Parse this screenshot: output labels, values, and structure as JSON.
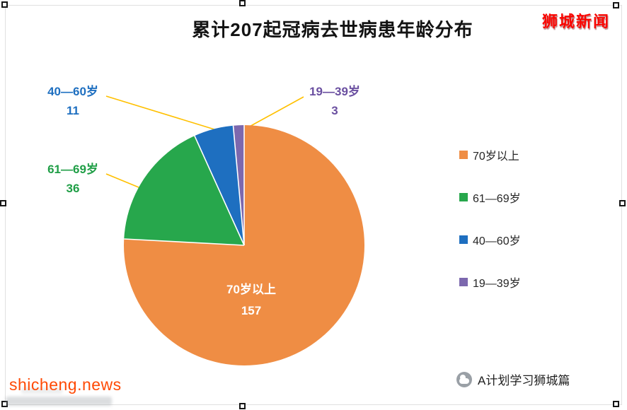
{
  "branding": {
    "logo_text": "狮城新闻"
  },
  "chart_data": {
    "type": "pie",
    "title": "累计207起冠病去世病患年龄分布",
    "total": 207,
    "slices": [
      {
        "label": "70岁以上",
        "value": 157,
        "color": "#EF8D44",
        "label_color": "#FFFFFF"
      },
      {
        "label": "61—69岁",
        "value": 36,
        "color": "#27A74C",
        "label_color": "#1F9E46"
      },
      {
        "label": "40—60岁",
        "value": 11,
        "color": "#1E6FC0",
        "label_color": "#1E6FC0"
      },
      {
        "label": "19—39岁",
        "value": 3,
        "color": "#7C68AE",
        "label_color": "#6A4FA0"
      }
    ],
    "legend_position": "right",
    "leader_line_color": "#FFC000",
    "start_angle_deg": 0,
    "direction": "clockwise",
    "background": "#FFFFFF"
  },
  "footer": {
    "watermark_url": "shicheng.news",
    "credit": "A计划学习狮城篇"
  }
}
